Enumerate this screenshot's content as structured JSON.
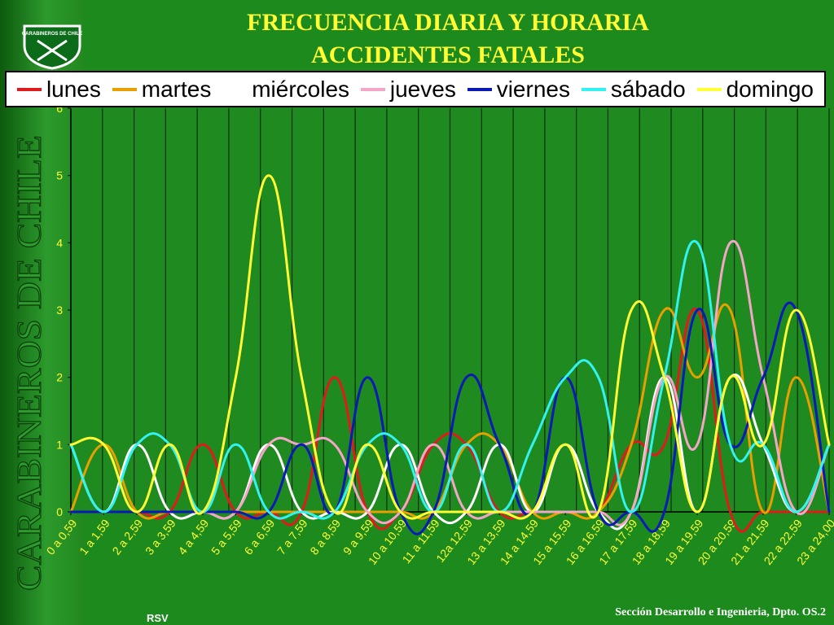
{
  "title_line1": "FRECUENCIA DIARIA Y HORARIA",
  "title_line2": "ACCIDENTES FATALES",
  "sidebar_text": "CARABINEROS DE CHILE",
  "logo_text": "CARABINEROS DE CHILE",
  "footer_left": "RSV",
  "footer_right": "Sección Desarrollo e Ingenieria, Dpto. OS.2",
  "colors": {
    "lunes": "#e01b1b",
    "martes": "#e8a000",
    "miercoles": "#ffffff",
    "jueves": "#f4a6c8",
    "viernes": "#0a1ab5",
    "sabado": "#33f2f2",
    "domingo": "#ffff33"
  },
  "chart_data": {
    "type": "line",
    "title": "FRECUENCIA DIARIA Y HORARIA ACCIDENTES FATALES",
    "categories": [
      "0 a 0,59",
      "1 a 1,59",
      "2 a 2,59",
      "3 a 3,59",
      "4 a 4,59",
      "5 a 5,59",
      "6 a 6,59",
      "7 a 7,59",
      "8 a 8,59",
      "9 a 9,59",
      "10 a 10,59",
      "11 a 11,59",
      "12a 12,59",
      "13 a 13,59",
      "14 a 14,59",
      "15 a 15,59",
      "16 a 16,59",
      "17 a 17,59",
      "18 a 18,59",
      "19 a 19,59",
      "20 a 20,59",
      "21 a 21,59",
      "22 a 22,59",
      "23 a 24,00"
    ],
    "ylim": [
      0,
      6
    ],
    "yticks": [
      "0",
      "1",
      "2",
      "3",
      "4",
      "5",
      "6"
    ],
    "legend_position": "top",
    "grid": true,
    "series": [
      {
        "name": "lunes",
        "color": "#e01b1b",
        "values": [
          0,
          0,
          0,
          0,
          1,
          0,
          0,
          0,
          2,
          0,
          0,
          1,
          1,
          0,
          0,
          0,
          0,
          1,
          1,
          3,
          0,
          0,
          0,
          0
        ]
      },
      {
        "name": "martes",
        "color": "#e8a000",
        "values": [
          0,
          1,
          0,
          0,
          0,
          0,
          0,
          0,
          0,
          0,
          0,
          0,
          1,
          1,
          0,
          0,
          0,
          1,
          3,
          2,
          3,
          0,
          2,
          0
        ]
      },
      {
        "name": "miércoles",
        "color": "#ffffff",
        "values": [
          1,
          0,
          1,
          0,
          0,
          0,
          1,
          0,
          0,
          0,
          1,
          0,
          0,
          1,
          0,
          1,
          0,
          0,
          2,
          0,
          2,
          1,
          0,
          1
        ]
      },
      {
        "name": "jueves",
        "color": "#f4a6c8",
        "values": [
          0,
          0,
          0,
          0,
          0,
          0,
          1,
          1,
          1,
          0,
          0,
          1,
          0,
          0,
          0,
          0,
          0,
          0,
          2,
          1,
          4,
          2,
          0,
          1
        ]
      },
      {
        "name": "viernes",
        "color": "#0a1ab5",
        "values": [
          0,
          0,
          0,
          0,
          0,
          0,
          0,
          1,
          0,
          2,
          0,
          0,
          2,
          1,
          0,
          2,
          0,
          0,
          0,
          3,
          1,
          2,
          3,
          0
        ]
      },
      {
        "name": "sábado",
        "color": "#33f2f2",
        "values": [
          1,
          0,
          1,
          1,
          0,
          1,
          0,
          0,
          0,
          1,
          1,
          0,
          1,
          0,
          1,
          2,
          2,
          0,
          2,
          4,
          1,
          1,
          0,
          1
        ]
      },
      {
        "name": "domingo",
        "color": "#ffff33",
        "values": [
          1,
          1,
          0,
          1,
          0,
          2,
          5,
          2,
          0,
          1,
          0,
          0,
          0,
          0,
          0,
          1,
          0,
          3,
          2,
          0,
          2,
          1,
          3,
          1
        ]
      }
    ]
  }
}
